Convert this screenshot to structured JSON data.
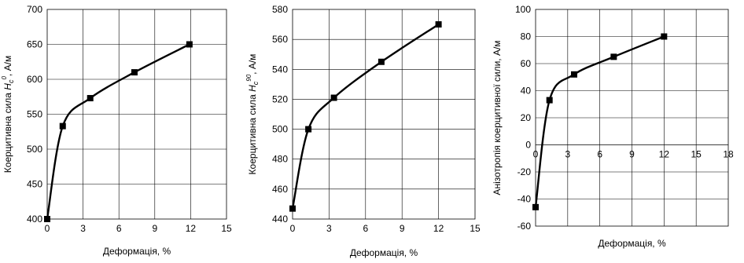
{
  "chart_data": [
    {
      "type": "line",
      "ylabel_main": "Коерцитивна сила ",
      "ylabel_var": "H",
      "ylabel_sub": "c",
      "ylabel_sup": "0",
      "ylabel_unit": ", А/м",
      "xlabel": "Деформація, %",
      "xlim": [
        0,
        15
      ],
      "ylim": [
        400,
        700
      ],
      "xticks": [
        "0",
        "3",
        "6",
        "9",
        "12",
        "15"
      ],
      "yticks": [
        "400",
        "450",
        "500",
        "550",
        "600",
        "650",
        "700"
      ],
      "xtick_values": [
        0,
        3,
        6,
        9,
        12,
        15
      ],
      "ytick_values": [
        400,
        450,
        500,
        550,
        600,
        650,
        700
      ],
      "grid": true,
      "x": [
        0,
        1.3,
        3.6,
        7.3,
        11.9
      ],
      "y": [
        400,
        533,
        573,
        610,
        650
      ]
    },
    {
      "type": "line",
      "ylabel_main": "Коерцитивна сила ",
      "ylabel_var": "H",
      "ylabel_sub": "c",
      "ylabel_sup": "90",
      "ylabel_unit": ", А/м",
      "xlabel": "Деформація, %",
      "xlim": [
        0,
        15
      ],
      "ylim": [
        440,
        580
      ],
      "xticks": [
        "0",
        "3",
        "6",
        "9",
        "12",
        "15"
      ],
      "yticks": [
        "440",
        "460",
        "480",
        "500",
        "520",
        "540",
        "560",
        "580"
      ],
      "xtick_values": [
        0,
        3,
        6,
        9,
        12,
        15
      ],
      "ytick_values": [
        440,
        460,
        480,
        500,
        520,
        540,
        560,
        580
      ],
      "grid": true,
      "x": [
        0,
        1.3,
        3.4,
        7.3,
        12
      ],
      "y": [
        447,
        500,
        521,
        545,
        570
      ]
    },
    {
      "type": "line",
      "ylabel_main": "Анізотропія коерцитивної сили, А/м",
      "xlabel": "Деформація, %",
      "xlim": [
        0,
        18
      ],
      "ylim": [
        -60,
        100
      ],
      "xticks": [
        "0",
        "3",
        "6",
        "9",
        "12",
        "15",
        "18"
      ],
      "yticks": [
        "-60",
        "-40",
        "-20",
        "0",
        "20",
        "40",
        "60",
        "80",
        "100"
      ],
      "xtick_values": [
        0,
        3,
        6,
        9,
        12,
        15,
        18
      ],
      "ytick_values": [
        -60,
        -40,
        -20,
        0,
        20,
        40,
        60,
        80,
        100
      ],
      "grid": true,
      "x_axis_at_zero": true,
      "x": [
        0,
        1.3,
        3.6,
        7.3,
        12
      ],
      "y": [
        -46,
        33,
        52,
        65,
        80
      ]
    }
  ]
}
